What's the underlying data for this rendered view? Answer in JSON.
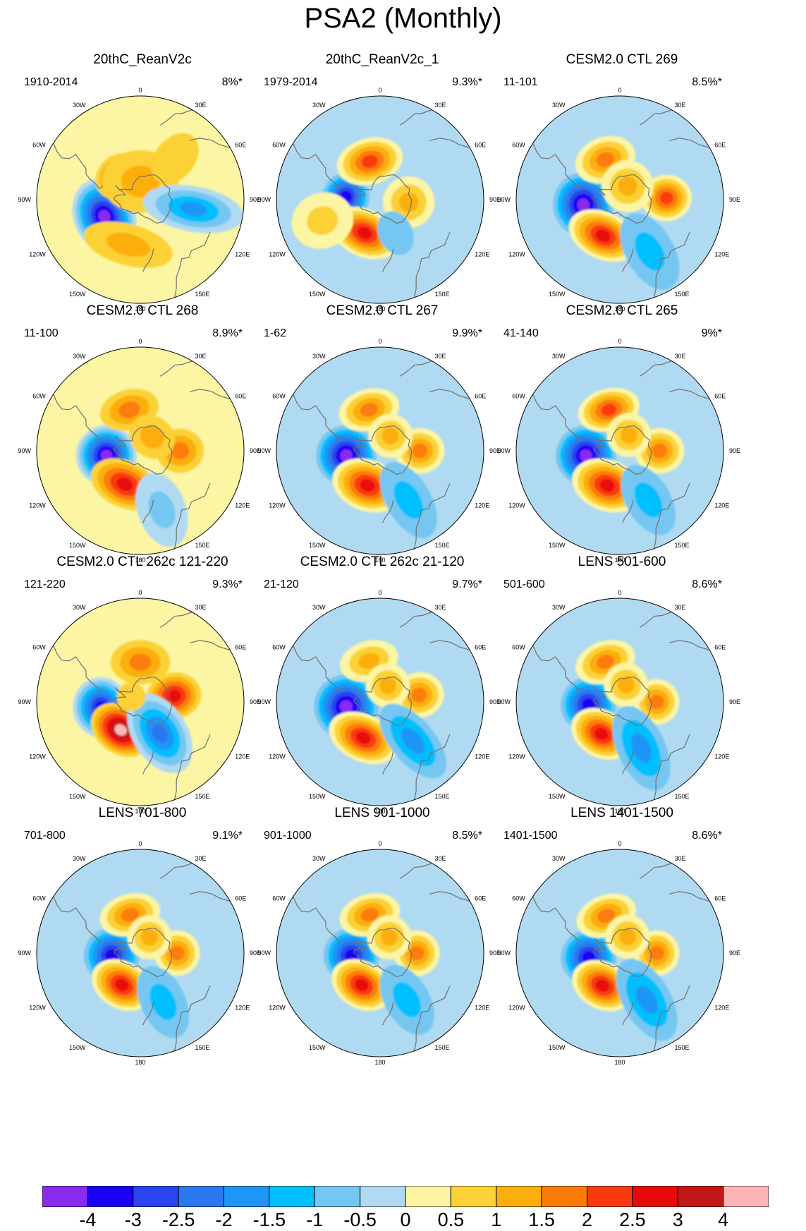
{
  "title": "PSA2 (Monthly)",
  "colors": {
    "bins": [
      "#8A2BF0",
      "#1A00F5",
      "#2A44EE",
      "#2B78F0",
      "#1E96F5",
      "#00BFFF",
      "#74C7F2",
      "#B0DAF2",
      "#FCF5A3",
      "#FCD135",
      "#FCAE0A",
      "#FC7C0A",
      "#FC3A10",
      "#E80A0A",
      "#C21818",
      "#FCB4B4"
    ],
    "coast": "#707070"
  },
  "longitude_labels": [
    "0",
    "30E",
    "60E",
    "90E",
    "120E",
    "150E",
    "180",
    "150W",
    "120W",
    "90W",
    "60W",
    "30W"
  ],
  "panels": [
    {
      "title": "20thC_ReanV2c",
      "years": "1910-2014",
      "pct": "8%*"
    },
    {
      "title": "20thC_ReanV2c_1",
      "years": "1979-2014",
      "pct": "9.3%*"
    },
    {
      "title": "CESM2.0 CTL 269",
      "years": "11-101",
      "pct": "8.5%*"
    },
    {
      "title": "CESM2.0 CTL 268",
      "years": "11-100",
      "pct": "8.9%*"
    },
    {
      "title": "CESM2.0 CTL 267",
      "years": "1-62",
      "pct": "9.9%*"
    },
    {
      "title": "CESM2.0 CTL 265",
      "years": "41-140",
      "pct": "9%*"
    },
    {
      "title": "CESM2.0 CTL 262c 121-220",
      "years": "121-220",
      "pct": "9.3%*"
    },
    {
      "title": "CESM2.0 CTL 262c 21-120",
      "years": "21-120",
      "pct": "9.7%*"
    },
    {
      "title": "LENS 501-600",
      "years": "501-600",
      "pct": "8.6%*"
    },
    {
      "title": "LENS 701-800",
      "years": "701-800",
      "pct": "9.1%*"
    },
    {
      "title": "LENS 901-1000",
      "years": "901-1000",
      "pct": "8.5%*"
    },
    {
      "title": "LENS 1401-1500",
      "years": "1401-1500",
      "pct": "8.6%*"
    }
  ],
  "chart_data": {
    "type": "heatmap",
    "projection": "south polar stereographic",
    "title": "PSA2 (Monthly)",
    "levels": [
      -4,
      -3,
      -2.5,
      -2,
      -1.5,
      -1,
      -0.5,
      0,
      0.5,
      1,
      1.5,
      2,
      2.5,
      3,
      4
    ],
    "level_labels": [
      "-4",
      "-3",
      "-2.5",
      "-2",
      "-1.5",
      "-1",
      "-0.5",
      "0",
      "0.5",
      "1",
      "1.5",
      "2",
      "2.5",
      "3",
      "4"
    ],
    "anomaly_centers_note": "approximate peak values of each panel's anomaly centers; lon in degrees east (0-360), colat in degrees from pole",
    "panels": [
      {
        "name": "20thC_ReanV2c",
        "background": 0.25,
        "centers": [
          {
            "lon": 245,
            "colat": 30,
            "value": -4.2,
            "rx": 17,
            "ry": 13
          },
          {
            "lon": 318,
            "colat": 24,
            "value": 2.6,
            "rx": 11,
            "ry": 9
          },
          {
            "lon": 195,
            "colat": 35,
            "value": 1.2,
            "rx": 24,
            "ry": 10
          },
          {
            "lon": 0,
            "colat": 14,
            "value": 1.0,
            "rx": 20,
            "ry": 16
          },
          {
            "lon": 100,
            "colat": 40,
            "value": -1.6,
            "rx": 10,
            "ry": 24
          },
          {
            "lon": 40,
            "colat": 40,
            "value": 0.7,
            "rx": 12,
            "ry": 18
          }
        ]
      },
      {
        "name": "20thC_ReanV2c_1",
        "background": -0.25,
        "centers": [
          {
            "lon": 275,
            "colat": 26,
            "value": -3.8,
            "rx": 10,
            "ry": 10
          },
          {
            "lon": 205,
            "colat": 28,
            "value": 2.8,
            "rx": 16,
            "ry": 10
          },
          {
            "lon": 345,
            "colat": 30,
            "value": 2.3,
            "rx": 15,
            "ry": 10
          },
          {
            "lon": 95,
            "colat": 22,
            "value": 1.3,
            "rx": 12,
            "ry": 12
          },
          {
            "lon": 250,
            "colat": 45,
            "value": 0.8,
            "rx": 14,
            "ry": 16
          },
          {
            "lon": 155,
            "colat": 28,
            "value": -0.8,
            "rx": 10,
            "ry": 14
          }
        ]
      },
      {
        "name": "CESM2.0 CTL 269",
        "background": -0.25,
        "centers": [
          {
            "lon": 262,
            "colat": 28,
            "value": -4.2,
            "rx": 14,
            "ry": 13
          },
          {
            "lon": 205,
            "colat": 30,
            "value": 2.6,
            "rx": 16,
            "ry": 10
          },
          {
            "lon": 340,
            "colat": 32,
            "value": 1.7,
            "rx": 14,
            "ry": 10
          },
          {
            "lon": 88,
            "colat": 35,
            "value": 2.1,
            "rx": 10,
            "ry": 11
          },
          {
            "lon": 30,
            "colat": 12,
            "value": 1.1,
            "rx": 12,
            "ry": 12
          },
          {
            "lon": 150,
            "colat": 44,
            "value": -1.1,
            "rx": 12,
            "ry": 22
          }
        ]
      },
      {
        "name": "CESM2.0 CTL 268",
        "background": 0.25,
        "centers": [
          {
            "lon": 262,
            "colat": 26,
            "value": -4.2,
            "rx": 13,
            "ry": 13
          },
          {
            "lon": 205,
            "colat": 28,
            "value": 2.6,
            "rx": 16,
            "ry": 10
          },
          {
            "lon": 345,
            "colat": 32,
            "value": 1.7,
            "rx": 14,
            "ry": 9
          },
          {
            "lon": 90,
            "colat": 30,
            "value": 1.8,
            "rx": 10,
            "ry": 11
          },
          {
            "lon": 40,
            "colat": 14,
            "value": 1.1,
            "rx": 12,
            "ry": 10
          },
          {
            "lon": 160,
            "colat": 46,
            "value": -0.8,
            "rx": 12,
            "ry": 20
          }
        ]
      },
      {
        "name": "CESM2.0 CTL 267",
        "background": -0.25,
        "centers": [
          {
            "lon": 262,
            "colat": 26,
            "value": -4.2,
            "rx": 13,
            "ry": 13
          },
          {
            "lon": 200,
            "colat": 28,
            "value": 2.8,
            "rx": 16,
            "ry": 11
          },
          {
            "lon": 345,
            "colat": 32,
            "value": 1.7,
            "rx": 14,
            "ry": 9
          },
          {
            "lon": 90,
            "colat": 30,
            "value": 1.8,
            "rx": 10,
            "ry": 11
          },
          {
            "lon": 35,
            "colat": 14,
            "value": 1.1,
            "rx": 10,
            "ry": 10
          },
          {
            "lon": 150,
            "colat": 42,
            "value": -1.5,
            "rx": 11,
            "ry": 22
          }
        ]
      },
      {
        "name": "CESM2.0 CTL 265",
        "background": -0.25,
        "centers": [
          {
            "lon": 262,
            "colat": 26,
            "value": -4.2,
            "rx": 13,
            "ry": 13
          },
          {
            "lon": 200,
            "colat": 28,
            "value": 2.8,
            "rx": 16,
            "ry": 11
          },
          {
            "lon": 345,
            "colat": 32,
            "value": 2.3,
            "rx": 14,
            "ry": 9
          },
          {
            "lon": 90,
            "colat": 30,
            "value": 1.8,
            "rx": 10,
            "ry": 11
          },
          {
            "lon": 30,
            "colat": 14,
            "value": 1.1,
            "rx": 10,
            "ry": 10
          },
          {
            "lon": 150,
            "colat": 42,
            "value": -1.3,
            "rx": 11,
            "ry": 20
          }
        ]
      },
      {
        "name": "CESM2.0 CTL 262c 121-220",
        "background": 0.25,
        "centers": [
          {
            "lon": 262,
            "colat": 30,
            "value": -3.6,
            "rx": 13,
            "ry": 12
          },
          {
            "lon": 215,
            "colat": 26,
            "value": 4.2,
            "rx": 14,
            "ry": 10
          },
          {
            "lon": 0,
            "colat": 30,
            "value": 1.8,
            "rx": 14,
            "ry": 10
          },
          {
            "lon": 80,
            "colat": 26,
            "value": 2.6,
            "rx": 10,
            "ry": 12
          },
          {
            "lon": 148,
            "colat": 28,
            "value": -2.2,
            "rx": 12,
            "ry": 20
          },
          {
            "lon": 300,
            "colat": 8,
            "value": 0.6,
            "rx": 8,
            "ry": 8
          }
        ]
      },
      {
        "name": "CESM2.0 CTL 262c 21-120",
        "background": -0.25,
        "centers": [
          {
            "lon": 262,
            "colat": 26,
            "value": -4.2,
            "rx": 14,
            "ry": 14
          },
          {
            "lon": 205,
            "colat": 30,
            "value": 2.6,
            "rx": 16,
            "ry": 10
          },
          {
            "lon": 345,
            "colat": 32,
            "value": 1.3,
            "rx": 14,
            "ry": 9
          },
          {
            "lon": 80,
            "colat": 30,
            "value": 1.7,
            "rx": 10,
            "ry": 11
          },
          {
            "lon": 25,
            "colat": 14,
            "value": 1.1,
            "rx": 10,
            "ry": 10
          },
          {
            "lon": 140,
            "colat": 38,
            "value": -1.6,
            "rx": 10,
            "ry": 22
          }
        ]
      },
      {
        "name": "LENS 501-600",
        "background": -0.25,
        "centers": [
          {
            "lon": 265,
            "colat": 24,
            "value": -3.8,
            "rx": 12,
            "ry": 12
          },
          {
            "lon": 210,
            "colat": 28,
            "value": 2.8,
            "rx": 14,
            "ry": 10
          },
          {
            "lon": 340,
            "colat": 32,
            "value": 1.7,
            "rx": 14,
            "ry": 9
          },
          {
            "lon": 90,
            "colat": 28,
            "value": 1.8,
            "rx": 10,
            "ry": 10
          },
          {
            "lon": 20,
            "colat": 14,
            "value": 1.1,
            "rx": 10,
            "ry": 10
          },
          {
            "lon": 155,
            "colat": 38,
            "value": -1.8,
            "rx": 11,
            "ry": 22
          }
        ]
      },
      {
        "name": "LENS 701-800",
        "background": -0.25,
        "centers": [
          {
            "lon": 265,
            "colat": 22,
            "value": -4.0,
            "rx": 12,
            "ry": 12
          },
          {
            "lon": 210,
            "colat": 28,
            "value": 2.7,
            "rx": 14,
            "ry": 10
          },
          {
            "lon": 345,
            "colat": 30,
            "value": 1.7,
            "rx": 14,
            "ry": 9
          },
          {
            "lon": 90,
            "colat": 28,
            "value": 1.8,
            "rx": 10,
            "ry": 10
          },
          {
            "lon": 30,
            "colat": 14,
            "value": 1.1,
            "rx": 10,
            "ry": 10
          },
          {
            "lon": 155,
            "colat": 40,
            "value": -1.2,
            "rx": 11,
            "ry": 20
          }
        ]
      },
      {
        "name": "LENS 901-1000",
        "background": -0.25,
        "centers": [
          {
            "lon": 265,
            "colat": 22,
            "value": -3.6,
            "rx": 12,
            "ry": 12
          },
          {
            "lon": 210,
            "colat": 28,
            "value": 2.6,
            "rx": 14,
            "ry": 10
          },
          {
            "lon": 345,
            "colat": 30,
            "value": 1.7,
            "rx": 14,
            "ry": 9
          },
          {
            "lon": 90,
            "colat": 28,
            "value": 1.8,
            "rx": 10,
            "ry": 10
          },
          {
            "lon": 30,
            "colat": 14,
            "value": 1.1,
            "rx": 10,
            "ry": 10
          },
          {
            "lon": 150,
            "colat": 40,
            "value": -1.2,
            "rx": 11,
            "ry": 20
          }
        ]
      },
      {
        "name": "LENS 1401-1500",
        "background": -0.25,
        "centers": [
          {
            "lon": 262,
            "colat": 24,
            "value": -3.4,
            "rx": 12,
            "ry": 12
          },
          {
            "lon": 208,
            "colat": 28,
            "value": 2.6,
            "rx": 14,
            "ry": 10
          },
          {
            "lon": 340,
            "colat": 30,
            "value": 1.8,
            "rx": 14,
            "ry": 9
          },
          {
            "lon": 90,
            "colat": 28,
            "value": 1.7,
            "rx": 10,
            "ry": 10
          },
          {
            "lon": 25,
            "colat": 14,
            "value": 1.1,
            "rx": 10,
            "ry": 10
          },
          {
            "lon": 150,
            "colat": 40,
            "value": -1.6,
            "rx": 11,
            "ry": 22
          }
        ]
      }
    ]
  }
}
